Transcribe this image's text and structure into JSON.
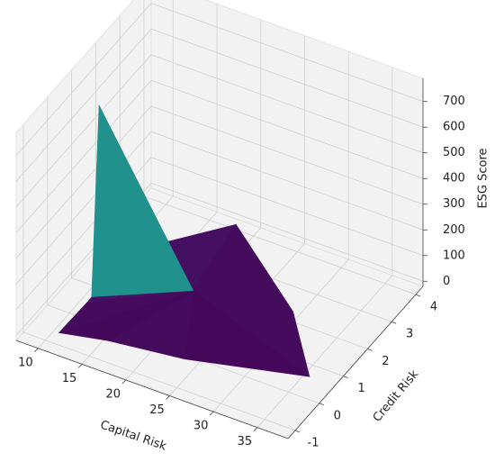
{
  "chart_data": {
    "type": "trisurf3d",
    "xlabel": "Capital Risk",
    "ylabel": "Credit Risk",
    "zlabel": "ESG Score",
    "xlim": [
      7.5,
      38.5
    ],
    "ylim": [
      -1.3,
      4.3
    ],
    "zlim": [
      -20,
      790
    ],
    "xticks": [
      10,
      15,
      20,
      25,
      30,
      35
    ],
    "yticks": [
      -1,
      0,
      1,
      2,
      3,
      4
    ],
    "zticks": [
      0,
      100,
      200,
      300,
      400,
      500,
      600,
      700
    ],
    "grid": true,
    "cmap": "viridis",
    "surface": {
      "x": [
        20,
        11,
        16,
        24,
        36,
        30,
        18,
        14,
        12.3,
        12,
        11.7,
        11.5
      ],
      "y": [
        1.5,
        -0.8,
        -0.6,
        -0.3,
        0.5,
        2,
        4,
        2.5,
        0.8,
        0.5,
        0.3,
        0.2
      ],
      "z": [
        30,
        0,
        10,
        5,
        0,
        20,
        0,
        40,
        50,
        760,
        30,
        20
      ]
    }
  }
}
